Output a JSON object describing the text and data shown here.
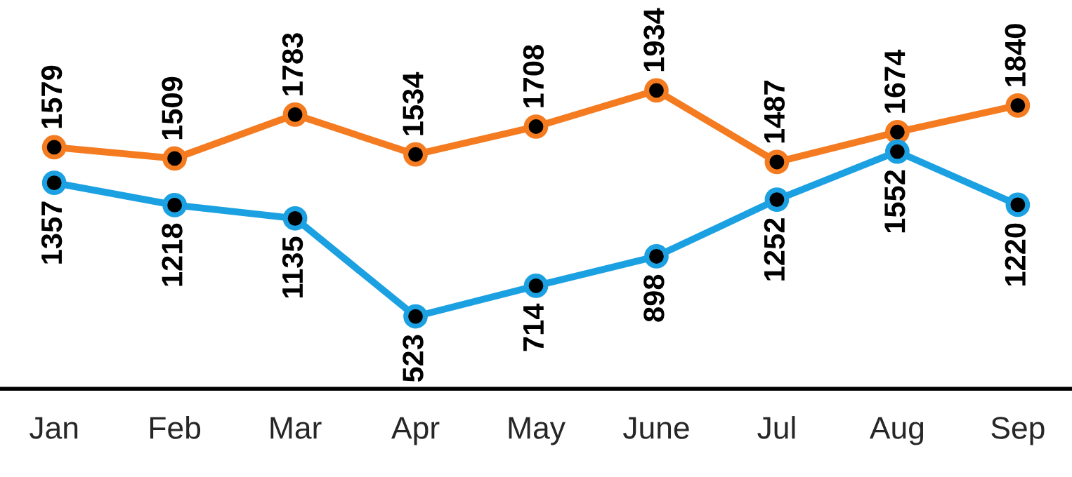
{
  "chart_data": {
    "type": "line",
    "categories": [
      "Jan",
      "Feb",
      "Mar",
      "Apr",
      "May",
      "June",
      "Jul",
      "Aug",
      "Sep"
    ],
    "series": [
      {
        "color": "#f47b20",
        "values": [
          1579,
          1509,
          1783,
          1534,
          1708,
          1934,
          1487,
          1674,
          1840
        ]
      },
      {
        "color": "#1ba1e2",
        "values": [
          1357,
          1218,
          1135,
          523,
          714,
          898,
          1252,
          1552,
          1220
        ]
      }
    ],
    "data_labels": true,
    "marker": "circle",
    "line_style": "solid",
    "grid": false,
    "legend": false,
    "tick_labels": "x"
  }
}
